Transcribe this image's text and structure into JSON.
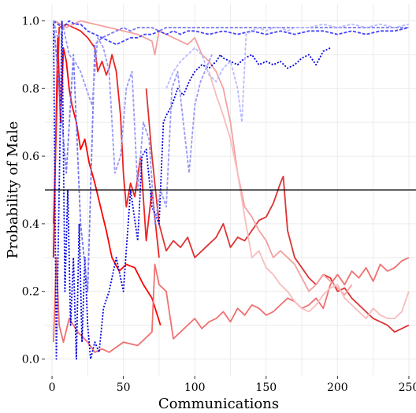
{
  "chart_data": {
    "type": "line",
    "title": "",
    "xlabel": "Communications",
    "ylabel": "Probability of Male",
    "xlim": [
      -5,
      255
    ],
    "ylim": [
      -0.05,
      1.05
    ],
    "x_ticks": [
      0,
      50,
      100,
      150,
      200,
      250
    ],
    "x_tick_labels": [
      "0",
      "50",
      "100",
      "150",
      "200",
      "250"
    ],
    "y_ticks": [
      0.0,
      0.2,
      0.4,
      0.6,
      0.8,
      1.0
    ],
    "y_tick_labels": [
      "0.0",
      "0.2",
      "0.4",
      "0.6",
      "0.8",
      "1.0"
    ],
    "grid": true,
    "legend": "none",
    "reference_line": {
      "y": 0.5,
      "color": "#000000"
    },
    "series": [
      {
        "color": "#ff0000",
        "style": "solid",
        "x": [
          1,
          4,
          6,
          8,
          10,
          12,
          14,
          17,
          20,
          23,
          26,
          30,
          34,
          38,
          42,
          47,
          52,
          58,
          64,
          70,
          76
        ],
        "y": [
          0.3,
          0.95,
          0.7,
          0.92,
          0.88,
          0.8,
          0.75,
          0.7,
          0.62,
          0.65,
          0.58,
          0.52,
          0.45,
          0.38,
          0.3,
          0.26,
          0.28,
          0.27,
          0.22,
          0.18,
          0.1
        ]
      },
      {
        "color": "#ee2222",
        "style": "solid",
        "x": [
          1,
          5,
          10,
          15,
          20,
          25,
          30,
          32,
          35,
          38,
          40,
          42,
          45,
          48,
          50,
          52,
          55,
          58,
          62,
          66,
          70,
          75
        ],
        "y": [
          0.4,
          0.98,
          0.99,
          0.98,
          0.97,
          0.95,
          0.92,
          0.85,
          0.88,
          0.84,
          0.86,
          0.9,
          0.85,
          0.72,
          0.55,
          0.45,
          0.52,
          0.48,
          0.6,
          0.35,
          0.5,
          0.3
        ]
      },
      {
        "color": "#dd3333",
        "style": "solid",
        "x": [
          66,
          70,
          75,
          80,
          85,
          90,
          95,
          100,
          105,
          110,
          115,
          120,
          125,
          130,
          135,
          140,
          145,
          150,
          155,
          160,
          162,
          165,
          170,
          175,
          180,
          185,
          190,
          195,
          200,
          205,
          210,
          215,
          220,
          225,
          230,
          235,
          240,
          245,
          250
        ],
        "y": [
          0.8,
          0.6,
          0.4,
          0.32,
          0.35,
          0.33,
          0.36,
          0.3,
          0.32,
          0.34,
          0.36,
          0.4,
          0.33,
          0.36,
          0.35,
          0.38,
          0.41,
          0.42,
          0.46,
          0.52,
          0.54,
          0.38,
          0.3,
          0.27,
          0.24,
          0.22,
          0.25,
          0.24,
          0.2,
          0.21,
          0.18,
          0.16,
          0.14,
          0.12,
          0.11,
          0.1,
          0.08,
          0.09,
          0.1
        ]
      },
      {
        "color": "#f07070",
        "style": "solid",
        "x": [
          1,
          3,
          5,
          8,
          12,
          18,
          25,
          30,
          35,
          40,
          50,
          60,
          70,
          72,
          75,
          80,
          85,
          90,
          95,
          100,
          105,
          110,
          115,
          120,
          125,
          130,
          135,
          140,
          145,
          150,
          155,
          160,
          165,
          170,
          175,
          180,
          185,
          190,
          195,
          200,
          205,
          210,
          215,
          220,
          225,
          230,
          235,
          240,
          245,
          250
        ],
        "y": [
          0.05,
          0.3,
          0.1,
          0.05,
          0.12,
          0.08,
          0.05,
          0.02,
          0.03,
          0.02,
          0.05,
          0.04,
          0.08,
          0.28,
          0.22,
          0.2,
          0.06,
          0.08,
          0.1,
          0.12,
          0.09,
          0.11,
          0.12,
          0.14,
          0.11,
          0.15,
          0.13,
          0.16,
          0.15,
          0.13,
          0.14,
          0.16,
          0.18,
          0.17,
          0.15,
          0.16,
          0.18,
          0.15,
          0.22,
          0.25,
          0.22,
          0.26,
          0.24,
          0.27,
          0.23,
          0.28,
          0.26,
          0.27,
          0.29,
          0.3
        ]
      },
      {
        "color": "#f5a0a0",
        "style": "solid",
        "x": [
          2,
          6,
          10,
          15,
          20,
          30,
          40,
          50,
          60,
          65,
          70,
          72,
          75,
          80,
          85,
          90,
          95,
          100,
          105,
          110,
          115,
          120,
          125,
          130,
          135,
          140,
          145,
          150,
          155,
          160,
          165,
          170,
          175,
          180,
          185,
          190,
          195,
          200,
          205,
          210
        ],
        "y": [
          1.0,
          0.99,
          0.98,
          0.99,
          1.0,
          0.99,
          0.98,
          0.97,
          0.96,
          0.95,
          0.94,
          0.9,
          0.97,
          0.96,
          0.95,
          0.94,
          0.93,
          0.95,
          0.9,
          0.88,
          0.85,
          0.8,
          0.7,
          0.55,
          0.45,
          0.42,
          0.38,
          0.35,
          0.3,
          0.32,
          0.3,
          0.28,
          0.24,
          0.2,
          0.22,
          0.25,
          0.23,
          0.21,
          0.19,
          0.22
        ]
      },
      {
        "color": "#f8bcbc",
        "style": "solid",
        "x": [
          110,
          115,
          120,
          125,
          130,
          135,
          140,
          145,
          150,
          155,
          160,
          165,
          170,
          175,
          180,
          185,
          190,
          195,
          200,
          205,
          210,
          215,
          220,
          225,
          230,
          235,
          240,
          245,
          250
        ],
        "y": [
          0.85,
          0.78,
          0.72,
          0.65,
          0.55,
          0.42,
          0.3,
          0.32,
          0.27,
          0.25,
          0.22,
          0.2,
          0.17,
          0.15,
          0.14,
          0.16,
          0.19,
          0.21,
          0.22,
          0.18,
          0.16,
          0.14,
          0.12,
          0.15,
          0.13,
          0.12,
          0.12,
          0.14,
          0.2
        ]
      },
      {
        "color": "#0000dd",
        "style": "dotted",
        "x": [
          1,
          3,
          5,
          7,
          9,
          11,
          13,
          15,
          17,
          19,
          21,
          23,
          25,
          27,
          30,
          33,
          36,
          40,
          45,
          50,
          55,
          60,
          63,
          66,
          70,
          75,
          78,
          80,
          84,
          88,
          92,
          96,
          100,
          105,
          110,
          115,
          118,
          120,
          125,
          130,
          135,
          140,
          145,
          150,
          155,
          160,
          165,
          170,
          175,
          180,
          185,
          190,
          195
        ],
        "y": [
          1.0,
          0.0,
          0.5,
          1.0,
          0.2,
          0.5,
          0.1,
          0.3,
          0.0,
          0.4,
          0.05,
          0.3,
          0.1,
          0.0,
          0.05,
          0.02,
          0.15,
          0.2,
          0.3,
          0.2,
          0.5,
          0.35,
          0.6,
          0.62,
          0.45,
          0.4,
          0.7,
          0.72,
          0.75,
          0.8,
          0.78,
          0.82,
          0.85,
          0.87,
          0.86,
          0.88,
          0.9,
          0.89,
          0.88,
          0.87,
          0.89,
          0.9,
          0.87,
          0.88,
          0.87,
          0.88,
          0.86,
          0.87,
          0.89,
          0.9,
          0.87,
          0.91,
          0.92
        ]
      },
      {
        "color": "#4444ff",
        "style": "dashed",
        "x": [
          1,
          4,
          8,
          12,
          16,
          20,
          25,
          30,
          35,
          40,
          45,
          50,
          55,
          60,
          65,
          70,
          75,
          80,
          85,
          90,
          95,
          100,
          110,
          120,
          130,
          140,
          150,
          160,
          170,
          180,
          190,
          200,
          210,
          220,
          230,
          240,
          250
        ],
        "y": [
          1.0,
          0.99,
          0.98,
          1.0,
          0.99,
          0.99,
          0.97,
          0.96,
          0.95,
          0.94,
          0.93,
          0.94,
          0.95,
          0.95,
          0.96,
          0.96,
          0.97,
          0.96,
          0.97,
          0.96,
          0.97,
          0.97,
          0.96,
          0.97,
          0.96,
          0.97,
          0.96,
          0.97,
          0.96,
          0.97,
          0.97,
          0.96,
          0.97,
          0.96,
          0.97,
          0.97,
          0.98
        ]
      },
      {
        "color": "#7777ee",
        "style": "dashed",
        "x": [
          1,
          5,
          10,
          15,
          20,
          25,
          30,
          35,
          40,
          45,
          50,
          55,
          60,
          65,
          70,
          75,
          80,
          85,
          90,
          95,
          100,
          110,
          120,
          130,
          140,
          150,
          160,
          170,
          180,
          190,
          200,
          210,
          220,
          230,
          240,
          250
        ],
        "y": [
          1.0,
          0.8,
          0.55,
          0.9,
          0.4,
          0.2,
          0.93,
          0.95,
          0.96,
          0.97,
          0.98,
          0.97,
          0.98,
          0.98,
          0.98,
          0.97,
          0.98,
          0.98,
          0.98,
          0.98,
          0.98,
          0.98,
          0.98,
          0.98,
          0.98,
          0.98,
          0.98,
          0.98,
          0.98,
          0.98,
          0.98,
          0.98,
          0.98,
          0.98,
          0.98,
          0.98
        ]
      },
      {
        "color": "#9999f5",
        "style": "dashed",
        "x": [
          1,
          4,
          8,
          12,
          16,
          20,
          24,
          28,
          32,
          36,
          40,
          44,
          48,
          52,
          56,
          60,
          64,
          68,
          72,
          76,
          80,
          84,
          88,
          92,
          96,
          100,
          104,
          108,
          112
        ],
        "y": [
          1.0,
          0.95,
          0.98,
          0.9,
          0.88,
          0.85,
          0.8,
          0.75,
          0.95,
          0.92,
          0.85,
          0.55,
          0.6,
          0.8,
          0.85,
          0.5,
          0.7,
          0.65,
          0.4,
          0.5,
          0.45,
          0.8,
          0.85,
          0.7,
          0.55,
          0.75,
          0.82,
          0.86,
          0.9
        ]
      },
      {
        "color": "#bbbbff",
        "style": "dashed",
        "x": [
          80,
          85,
          90,
          95,
          100,
          105,
          110,
          115,
          120,
          125,
          130,
          133,
          136,
          140,
          145,
          150,
          155,
          160,
          165,
          170,
          175,
          180,
          190,
          200,
          210,
          220,
          230,
          240,
          250
        ],
        "y": [
          0.8,
          0.85,
          0.88,
          0.9,
          0.92,
          0.9,
          0.84,
          0.82,
          0.86,
          0.88,
          0.8,
          0.7,
          0.96,
          0.97,
          0.98,
          0.97,
          0.98,
          0.98,
          0.97,
          0.98,
          0.98,
          0.98,
          0.99,
          0.98,
          0.99,
          0.98,
          0.99,
          0.98,
          0.99
        ]
      }
    ]
  }
}
